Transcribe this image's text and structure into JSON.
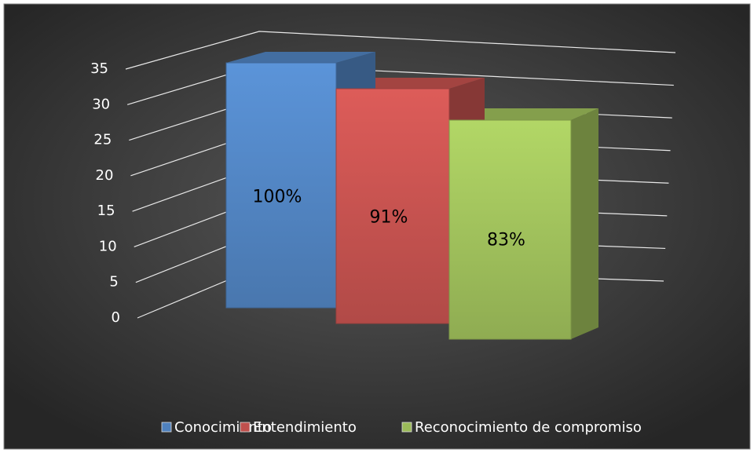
{
  "chart_data": {
    "type": "bar3d",
    "categories": [
      null
    ],
    "series": [
      {
        "name": "Conocimiento",
        "color": "#4f81bd",
        "values": [
          35
        ],
        "value_labels": [
          "100%"
        ]
      },
      {
        "name": "Entendimiento",
        "color": "#c0504d",
        "values": [
          32
        ],
        "value_labels": [
          "91%"
        ]
      },
      {
        "name": "Reconocimiento de compromiso",
        "color": "#9bbb59",
        "values": [
          29
        ],
        "value_labels": [
          "83%"
        ]
      }
    ],
    "ylim": [
      0,
      35
    ],
    "yticks": [
      0,
      5,
      10,
      15,
      20,
      25,
      30,
      35
    ],
    "grid": true,
    "legend": "bottom"
  }
}
